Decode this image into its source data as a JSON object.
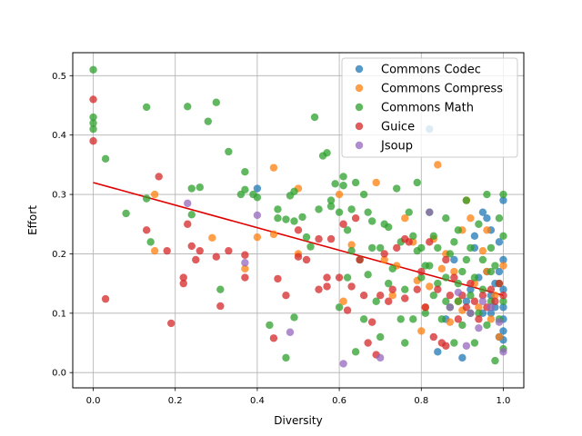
{
  "chart_data": {
    "type": "scatter",
    "title": "",
    "xlabel": "Diversity",
    "ylabel": "Effort",
    "xlim": [
      -0.05,
      1.05
    ],
    "ylim": [
      -0.0257,
      0.5387
    ],
    "xticks": [
      "0.0",
      "0.2",
      "0.4",
      "0.6",
      "0.8",
      "1.0"
    ],
    "yticks": [
      "0.0",
      "0.1",
      "0.2",
      "0.3",
      "0.4",
      "0.5"
    ],
    "grid": true,
    "legend_position": "top-right",
    "fit_line": {
      "x": [
        0.0,
        1.0
      ],
      "y": [
        0.32,
        0.13
      ],
      "color": "#e00000"
    },
    "series": [
      {
        "name": "Commons Codec",
        "color": "#1f77b4",
        "points": [
          [
            0.4,
            0.31
          ],
          [
            0.82,
            0.41
          ],
          [
            0.84,
            0.035
          ],
          [
            0.9,
            0.025
          ],
          [
            0.91,
            0.12
          ],
          [
            0.93,
            0.23
          ],
          [
            0.95,
            0.27
          ],
          [
            0.96,
            0.26
          ],
          [
            0.97,
            0.24
          ],
          [
            0.98,
            0.15
          ],
          [
            0.99,
            0.22
          ],
          [
            1.0,
            0.29
          ],
          [
            1.0,
            0.19
          ],
          [
            1.0,
            0.14
          ],
          [
            1.0,
            0.11
          ],
          [
            1.0,
            0.09
          ],
          [
            1.0,
            0.07
          ],
          [
            0.99,
            0.06
          ],
          [
            0.98,
            0.11
          ],
          [
            0.97,
            0.13
          ],
          [
            0.96,
            0.17
          ],
          [
            0.95,
            0.1
          ],
          [
            0.94,
            0.16
          ],
          [
            0.92,
            0.14
          ],
          [
            0.88,
            0.19
          ],
          [
            0.86,
            0.09
          ],
          [
            0.99,
            0.17
          ],
          [
            1.0,
            0.055
          ],
          [
            0.97,
            0.1
          ],
          [
            0.93,
            0.21
          ]
        ]
      },
      {
        "name": "Commons Compress",
        "color": "#ff7f0e",
        "points": [
          [
            0.15,
            0.3
          ],
          [
            0.15,
            0.205
          ],
          [
            0.29,
            0.227
          ],
          [
            0.37,
            0.175
          ],
          [
            0.4,
            0.228
          ],
          [
            0.44,
            0.345
          ],
          [
            0.44,
            0.233
          ],
          [
            0.5,
            0.2
          ],
          [
            0.5,
            0.31
          ],
          [
            0.6,
            0.3
          ],
          [
            0.61,
            0.12
          ],
          [
            0.63,
            0.215
          ],
          [
            0.69,
            0.32
          ],
          [
            0.71,
            0.19
          ],
          [
            0.74,
            0.18
          ],
          [
            0.76,
            0.26
          ],
          [
            0.78,
            0.22
          ],
          [
            0.8,
            0.07
          ],
          [
            0.81,
            0.11
          ],
          [
            0.82,
            0.145
          ],
          [
            0.84,
            0.35
          ],
          [
            0.86,
            0.2
          ],
          [
            0.88,
            0.17
          ],
          [
            0.89,
            0.12
          ],
          [
            0.9,
            0.24
          ],
          [
            0.91,
            0.29
          ],
          [
            0.92,
            0.26
          ],
          [
            0.93,
            0.15
          ],
          [
            0.94,
            0.11
          ],
          [
            0.95,
            0.205
          ],
          [
            0.96,
            0.17
          ],
          [
            0.97,
            0.09
          ],
          [
            0.98,
            0.13
          ],
          [
            0.99,
            0.06
          ],
          [
            1.0,
            0.18
          ],
          [
            0.87,
            0.085
          ],
          [
            0.85,
            0.175
          ],
          [
            0.79,
            0.155
          ],
          [
            0.73,
            0.13
          ],
          [
            0.83,
            0.225
          ],
          [
            0.9,
            0.105
          ],
          [
            0.96,
            0.24
          ]
        ]
      },
      {
        "name": "Commons Math",
        "color": "#2ca02c",
        "points": [
          [
            0.0,
            0.51
          ],
          [
            0.0,
            0.43
          ],
          [
            0.0,
            0.42
          ],
          [
            0.0,
            0.41
          ],
          [
            0.03,
            0.36
          ],
          [
            0.08,
            0.268
          ],
          [
            0.13,
            0.447
          ],
          [
            0.13,
            0.293
          ],
          [
            0.14,
            0.22
          ],
          [
            0.23,
            0.448
          ],
          [
            0.24,
            0.31
          ],
          [
            0.24,
            0.266
          ],
          [
            0.26,
            0.312
          ],
          [
            0.28,
            0.423
          ],
          [
            0.3,
            0.455
          ],
          [
            0.31,
            0.14
          ],
          [
            0.33,
            0.372
          ],
          [
            0.36,
            0.3
          ],
          [
            0.37,
            0.338
          ],
          [
            0.37,
            0.308
          ],
          [
            0.39,
            0.3
          ],
          [
            0.4,
            0.295
          ],
          [
            0.43,
            0.08
          ],
          [
            0.45,
            0.275
          ],
          [
            0.45,
            0.26
          ],
          [
            0.47,
            0.025
          ],
          [
            0.47,
            0.258
          ],
          [
            0.48,
            0.298
          ],
          [
            0.49,
            0.093
          ],
          [
            0.49,
            0.305
          ],
          [
            0.49,
            0.255
          ],
          [
            0.51,
            0.262
          ],
          [
            0.52,
            0.228
          ],
          [
            0.53,
            0.212
          ],
          [
            0.54,
            0.43
          ],
          [
            0.55,
            0.275
          ],
          [
            0.56,
            0.365
          ],
          [
            0.57,
            0.37
          ],
          [
            0.58,
            0.29
          ],
          [
            0.58,
            0.28
          ],
          [
            0.59,
            0.318
          ],
          [
            0.6,
            0.27
          ],
          [
            0.61,
            0.33
          ],
          [
            0.61,
            0.315
          ],
          [
            0.62,
            0.24
          ],
          [
            0.63,
            0.275
          ],
          [
            0.63,
            0.205
          ],
          [
            0.64,
            0.32
          ],
          [
            0.65,
            0.19
          ],
          [
            0.66,
            0.3
          ],
          [
            0.67,
            0.27
          ],
          [
            0.67,
            0.165
          ],
          [
            0.68,
            0.255
          ],
          [
            0.69,
            0.12
          ],
          [
            0.7,
            0.21
          ],
          [
            0.71,
            0.25
          ],
          [
            0.72,
            0.245
          ],
          [
            0.73,
            0.175
          ],
          [
            0.74,
            0.31
          ],
          [
            0.75,
            0.22
          ],
          [
            0.76,
            0.14
          ],
          [
            0.77,
            0.27
          ],
          [
            0.78,
            0.09
          ],
          [
            0.78,
            0.23
          ],
          [
            0.79,
            0.32
          ],
          [
            0.8,
            0.21
          ],
          [
            0.8,
            0.16
          ],
          [
            0.81,
            0.1
          ],
          [
            0.82,
            0.27
          ],
          [
            0.82,
            0.18
          ],
          [
            0.83,
            0.23
          ],
          [
            0.83,
            0.13
          ],
          [
            0.84,
            0.21
          ],
          [
            0.85,
            0.09
          ],
          [
            0.86,
            0.26
          ],
          [
            0.86,
            0.16
          ],
          [
            0.87,
            0.2
          ],
          [
            0.87,
            0.11
          ],
          [
            0.88,
            0.05
          ],
          [
            0.88,
            0.22
          ],
          [
            0.89,
            0.15
          ],
          [
            0.89,
            0.24
          ],
          [
            0.9,
            0.17
          ],
          [
            0.9,
            0.08
          ],
          [
            0.91,
            0.29
          ],
          [
            0.91,
            0.19
          ],
          [
            0.92,
            0.13
          ],
          [
            0.92,
            0.21
          ],
          [
            0.93,
            0.05
          ],
          [
            0.93,
            0.16
          ],
          [
            0.94,
            0.25
          ],
          [
            0.94,
            0.1
          ],
          [
            0.95,
            0.19
          ],
          [
            0.95,
            0.14
          ],
          [
            0.96,
            0.3
          ],
          [
            0.96,
            0.08
          ],
          [
            0.97,
            0.21
          ],
          [
            0.97,
            0.12
          ],
          [
            0.98,
            0.02
          ],
          [
            0.98,
            0.18
          ],
          [
            0.99,
            0.26
          ],
          [
            0.99,
            0.15
          ],
          [
            1.0,
            0.3
          ],
          [
            1.0,
            0.23
          ],
          [
            1.0,
            0.12
          ],
          [
            1.0,
            0.04
          ],
          [
            0.64,
            0.035
          ],
          [
            0.66,
            0.09
          ],
          [
            0.7,
            0.06
          ],
          [
            0.72,
            0.15
          ],
          [
            0.76,
            0.05
          ],
          [
            0.84,
            0.15
          ],
          [
            0.86,
            0.12
          ],
          [
            0.97,
            0.17
          ],
          [
            0.99,
            0.09
          ],
          [
            0.92,
            0.1
          ],
          [
            0.89,
            0.12
          ],
          [
            0.81,
            0.18
          ],
          [
            0.79,
            0.205
          ],
          [
            0.75,
            0.09
          ],
          [
            0.68,
            0.21
          ],
          [
            0.62,
            0.16
          ],
          [
            0.6,
            0.11
          ]
        ]
      },
      {
        "name": "Guice",
        "color": "#d62728",
        "points": [
          [
            0.0,
            0.46
          ],
          [
            0.0,
            0.39
          ],
          [
            0.03,
            0.124
          ],
          [
            0.13,
            0.24
          ],
          [
            0.16,
            0.33
          ],
          [
            0.18,
            0.205
          ],
          [
            0.19,
            0.083
          ],
          [
            0.22,
            0.15
          ],
          [
            0.22,
            0.16
          ],
          [
            0.23,
            0.25
          ],
          [
            0.24,
            0.213
          ],
          [
            0.25,
            0.19
          ],
          [
            0.26,
            0.205
          ],
          [
            0.3,
            0.195
          ],
          [
            0.31,
            0.112
          ],
          [
            0.33,
            0.205
          ],
          [
            0.37,
            0.16
          ],
          [
            0.37,
            0.198
          ],
          [
            0.44,
            0.058
          ],
          [
            0.45,
            0.158
          ],
          [
            0.47,
            0.13
          ],
          [
            0.5,
            0.195
          ],
          [
            0.5,
            0.24
          ],
          [
            0.52,
            0.19
          ],
          [
            0.55,
            0.225
          ],
          [
            0.57,
            0.16
          ],
          [
            0.57,
            0.145
          ],
          [
            0.58,
            0.225
          ],
          [
            0.6,
            0.16
          ],
          [
            0.62,
            0.105
          ],
          [
            0.63,
            0.145
          ],
          [
            0.65,
            0.19
          ],
          [
            0.66,
            0.13
          ],
          [
            0.67,
            0.05
          ],
          [
            0.68,
            0.085
          ],
          [
            0.7,
            0.13
          ],
          [
            0.71,
            0.2
          ],
          [
            0.72,
            0.12
          ],
          [
            0.73,
            0.14
          ],
          [
            0.74,
            0.21
          ],
          [
            0.76,
            0.125
          ],
          [
            0.77,
            0.22
          ],
          [
            0.79,
            0.14
          ],
          [
            0.8,
            0.17
          ],
          [
            0.81,
            0.11
          ],
          [
            0.82,
            0.22
          ],
          [
            0.83,
            0.06
          ],
          [
            0.84,
            0.14
          ],
          [
            0.85,
            0.05
          ],
          [
            0.86,
            0.19
          ],
          [
            0.87,
            0.13
          ],
          [
            0.88,
            0.16
          ],
          [
            0.89,
            0.09
          ],
          [
            0.9,
            0.13
          ],
          [
            0.91,
            0.11
          ],
          [
            0.92,
            0.15
          ],
          [
            0.93,
            0.12
          ],
          [
            0.94,
            0.09
          ],
          [
            0.95,
            0.13
          ],
          [
            0.96,
            0.11
          ],
          [
            0.97,
            0.14
          ],
          [
            0.98,
            0.12
          ],
          [
            0.99,
            0.15
          ],
          [
            1.0,
            0.13
          ],
          [
            0.69,
            0.03
          ],
          [
            0.76,
            0.225
          ],
          [
            0.86,
            0.045
          ],
          [
            0.64,
            0.26
          ],
          [
            0.55,
            0.14
          ],
          [
            0.61,
            0.25
          ]
        ]
      },
      {
        "name": "Jsoup",
        "color": "#9467bd",
        "points": [
          [
            0.23,
            0.285
          ],
          [
            0.37,
            0.185
          ],
          [
            0.4,
            0.265
          ],
          [
            0.48,
            0.068
          ],
          [
            0.61,
            0.015
          ],
          [
            0.7,
            0.025
          ],
          [
            0.82,
            0.27
          ],
          [
            0.89,
            0.135
          ],
          [
            0.92,
            0.1
          ],
          [
            0.95,
            0.12
          ],
          [
            0.97,
            0.11
          ],
          [
            0.99,
            0.085
          ],
          [
            1.0,
            0.035
          ],
          [
            0.87,
            0.11
          ],
          [
            0.91,
            0.045
          ],
          [
            0.94,
            0.075
          ]
        ]
      }
    ]
  }
}
